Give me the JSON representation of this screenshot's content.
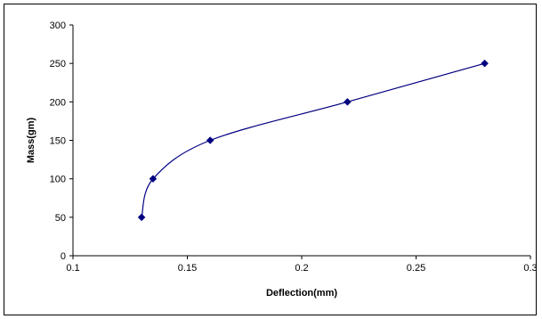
{
  "chart_data": {
    "type": "scatter",
    "title": "",
    "xlabel": "Deflection(mm)",
    "ylabel": "Mass(gm)",
    "xlim": [
      0.1,
      0.3
    ],
    "ylim": [
      0,
      300
    ],
    "x_ticks": [
      0.1,
      0.15,
      0.2,
      0.25,
      0.3
    ],
    "y_ticks": [
      0,
      50,
      100,
      150,
      200,
      250,
      300
    ],
    "x_tick_labels": [
      "0.1",
      "0.15",
      "0.2",
      "0.25",
      "0.3"
    ],
    "y_tick_labels": [
      "0",
      "50",
      "100",
      "150",
      "200",
      "250",
      "300"
    ],
    "series": [
      {
        "x": [
          0.13,
          0.135,
          0.16,
          0.22,
          0.28
        ],
        "y": [
          50,
          100,
          150,
          200,
          250
        ],
        "marker": "diamond",
        "line": "smooth"
      }
    ],
    "grid": false,
    "legend": "none",
    "colors": {
      "series": "#000080",
      "axis": "#000000"
    }
  }
}
